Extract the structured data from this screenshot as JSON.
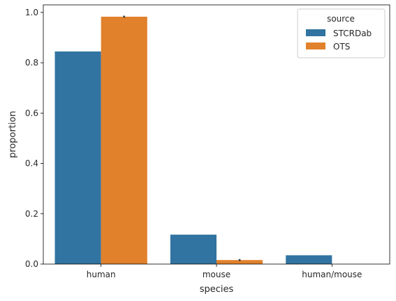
{
  "chart_data": {
    "type": "bar",
    "title": "",
    "xlabel": "species",
    "ylabel": "proportion",
    "categories": [
      "human",
      "mouse",
      "human/mouse"
    ],
    "series": [
      {
        "name": "STCRDab",
        "color": "#3274a1",
        "values": [
          0.845,
          0.117,
          0.035
        ],
        "err": [
          0,
          0,
          0
        ]
      },
      {
        "name": "OTS",
        "color": "#e1812c",
        "values": [
          0.983,
          0.016,
          0.0
        ],
        "err": [
          0.004,
          0.004,
          0
        ]
      }
    ],
    "ylim": [
      0,
      1.03
    ],
    "yticks": [
      0.0,
      0.2,
      0.4,
      0.6,
      0.8,
      1.0
    ],
    "ytick_labels": [
      "0.0",
      "0.2",
      "0.4",
      "0.6",
      "0.8",
      "1.0"
    ],
    "grid": false,
    "legend": {
      "title": "source",
      "placement": "top-right"
    }
  }
}
